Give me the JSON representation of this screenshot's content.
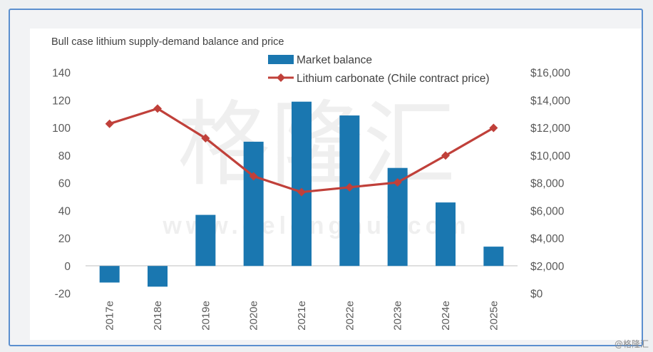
{
  "chart_data": {
    "type": "bar",
    "title": "Bull case lithium supply-demand balance and price",
    "categories": [
      "2017e",
      "2018e",
      "2019e",
      "2020e",
      "2021e",
      "2022e",
      "2023e",
      "2024e",
      "2025e"
    ],
    "series": [
      {
        "name": "Market balance",
        "type": "bar",
        "axis": "left",
        "color": "#1a77b0",
        "values": [
          -12,
          -15,
          37,
          90,
          119,
          109,
          71,
          46,
          14
        ]
      },
      {
        "name": "Lithium carbonate (Chile contract price)",
        "type": "line",
        "axis": "right",
        "color": "#c0403a",
        "values": [
          12300,
          13400,
          11250,
          8500,
          7350,
          7700,
          8050,
          10000,
          12000
        ]
      }
    ],
    "y_left": {
      "min": -20,
      "max": 140,
      "ticks": [
        "-20",
        "0",
        "20",
        "40",
        "60",
        "80",
        "100",
        "120",
        "140"
      ]
    },
    "y_right": {
      "min": 0,
      "max": 16000,
      "ticks": [
        "$0",
        "$2,000",
        "$4,000",
        "$6,000",
        "$8,000",
        "$10,000",
        "$12,000",
        "$14,000",
        "$16,000"
      ]
    },
    "grid": false,
    "legend": "top-center"
  },
  "watermark": {
    "text": "格隆汇",
    "url": "www.gelonghui.com"
  },
  "credit": "@格隆汇"
}
